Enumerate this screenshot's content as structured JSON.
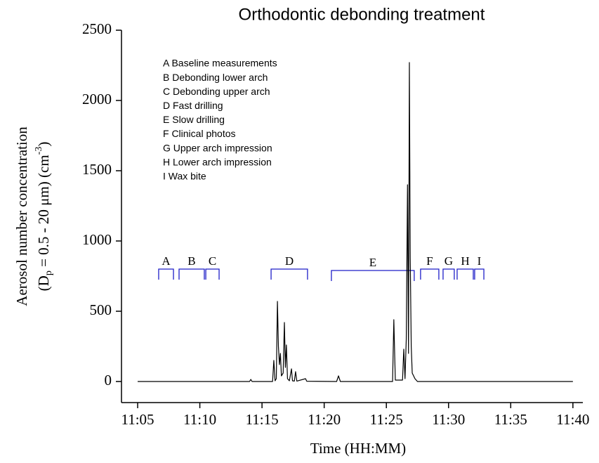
{
  "chart_data": {
    "type": "line",
    "title": "Orthodontic debonding treatment",
    "x_label": "Time (HH:MM)",
    "y_label": "Aerosol number concentration",
    "y_label_line2": [
      "(D",
      "p",
      " = 0.5 - 20 μm) (cm",
      "-3",
      ")"
    ],
    "xlim": [
      663.7,
      700.8
    ],
    "ylim": [
      -150,
      2500
    ],
    "xticks": [
      {
        "value": 665,
        "label": "11:05"
      },
      {
        "value": 670,
        "label": "11:10"
      },
      {
        "value": 675,
        "label": "11:15"
      },
      {
        "value": 680,
        "label": "11:20"
      },
      {
        "value": 685,
        "label": "11:25"
      },
      {
        "value": 690,
        "label": "11:30"
      },
      {
        "value": 695,
        "label": "11:35"
      },
      {
        "value": 700,
        "label": "11:40"
      }
    ],
    "yticks": [
      0,
      500,
      1000,
      1500,
      2000,
      2500
    ],
    "legend_text": [
      "A Baseline measurements",
      "B Debonding lower arch",
      "C Debonding upper arch",
      "D Fast drilling",
      "E Slow drilling",
      "F Clinical photos",
      "G Upper arch impression",
      "H Lower arch impression",
      "I  Wax bite"
    ],
    "phases": [
      {
        "label": "A",
        "start": 666.69,
        "end": 667.88,
        "level": 800
      },
      {
        "label": "B",
        "start": 668.33,
        "end": 670.36,
        "level": 800
      },
      {
        "label": "C",
        "start": 670.48,
        "end": 671.55,
        "level": 800
      },
      {
        "label": "D",
        "start": 675.73,
        "end": 678.66,
        "level": 800
      },
      {
        "label": "E",
        "start": 680.58,
        "end": 687.24,
        "level": 790
      },
      {
        "label": "F",
        "start": 687.75,
        "end": 689.22,
        "level": 800
      },
      {
        "label": "G",
        "start": 689.56,
        "end": 690.46,
        "level": 800
      },
      {
        "label": "H",
        "start": 690.69,
        "end": 691.99,
        "level": 800
      },
      {
        "label": "I",
        "start": 692.1,
        "end": 692.84,
        "level": 800
      }
    ],
    "phase_color": "#1f1fc8",
    "series": [
      {
        "name": "Aerosol number concentration",
        "color": "#000000",
        "x": [
          665.0,
          674.0,
          674.1,
          674.2,
          675.85,
          675.95,
          676.05,
          676.15,
          676.24,
          676.32,
          676.4,
          676.48,
          676.56,
          676.7,
          676.8,
          676.88,
          676.96,
          677.05,
          677.2,
          677.37,
          677.45,
          677.6,
          677.7,
          677.8,
          678.5,
          678.6,
          681.0,
          681.15,
          681.3,
          685.5,
          685.6,
          685.72,
          686.3,
          686.4,
          686.5,
          686.6,
          686.7,
          686.78,
          686.85,
          686.92,
          687.0,
          687.08,
          687.3,
          687.5,
          700.0
        ],
        "values": [
          0,
          0,
          15,
          0,
          0,
          150,
          5,
          20,
          570,
          250,
          120,
          200,
          40,
          60,
          420,
          100,
          260,
          20,
          5,
          90,
          5,
          3,
          70,
          3,
          20,
          2,
          0,
          40,
          0,
          0,
          440,
          10,
          10,
          230,
          20,
          300,
          1400,
          200,
          2270,
          880,
          250,
          60,
          20,
          0,
          0
        ]
      }
    ]
  }
}
